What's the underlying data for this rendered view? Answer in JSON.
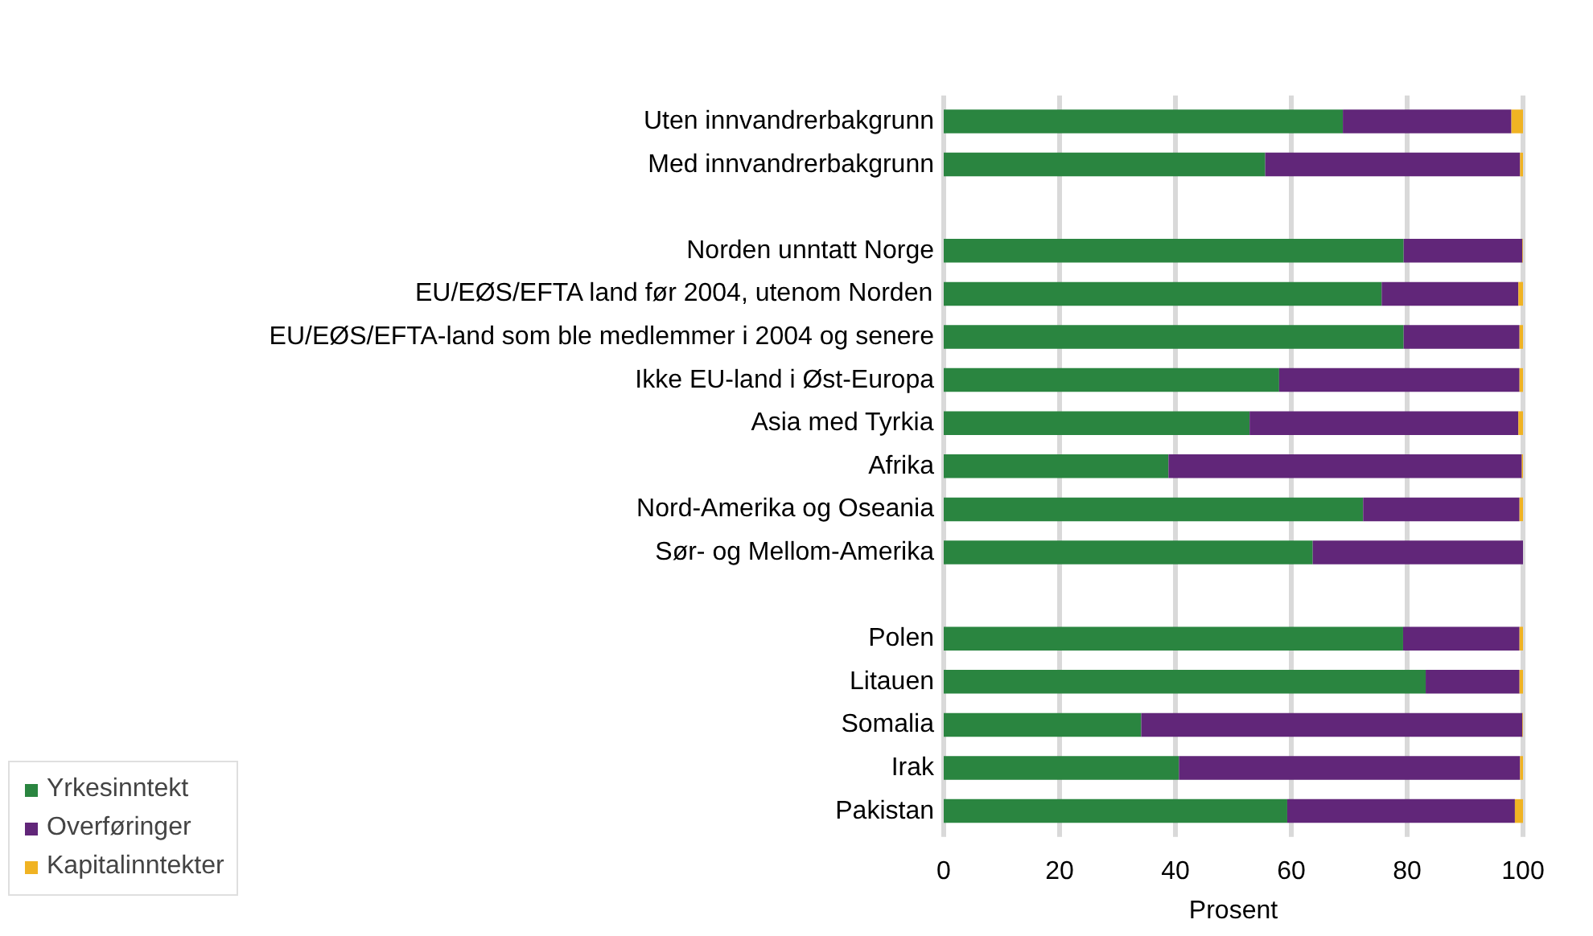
{
  "chart_data": {
    "type": "bar",
    "orientation": "horizontal",
    "stacked": true,
    "categories": [
      "Uten innvandrerbakgrunn",
      "Med innvandrerbakgrunn",
      null,
      "Norden unntatt Norge",
      "EU/EØS/EFTA land før 2004, utenom Norden",
      "EU/EØS/EFTA-land som ble medlemmer i 2004 og senere",
      "Ikke EU-land i Øst-Europa",
      "Asia med Tyrkia",
      "Afrika",
      "Nord-Amerika og Oseania",
      "Sør- og Mellom-Amerika",
      null,
      "Polen",
      "Litauen",
      "Somalia",
      "Irak",
      "Pakistan"
    ],
    "series": [
      {
        "name": "Yrkesinntekt",
        "color": "#2a8540",
        "values": [
          68.9,
          55.5,
          null,
          79.4,
          75.6,
          79.4,
          57.9,
          52.8,
          38.8,
          72.4,
          63.7,
          null,
          79.3,
          83.2,
          34.1,
          40.6,
          59.3
        ]
      },
      {
        "name": "Overføringer",
        "color": "#612679",
        "values": [
          29.1,
          44.0,
          null,
          20.5,
          23.6,
          20.0,
          41.5,
          46.4,
          61.0,
          27.0,
          36.3,
          null,
          20.1,
          16.2,
          65.8,
          58.9,
          39.3
        ]
      },
      {
        "name": "Kapitalinntekter",
        "color": "#f0b323",
        "values": [
          2.0,
          0.5,
          null,
          0.1,
          0.8,
          0.6,
          0.6,
          0.8,
          0.2,
          0.6,
          0.0,
          null,
          0.6,
          0.6,
          0.1,
          0.5,
          1.4
        ]
      }
    ],
    "xlim": [
      0,
      100
    ],
    "xticks": [
      0,
      20,
      40,
      60,
      80,
      100
    ],
    "xlabel": "Prosent",
    "grid": "x",
    "legend": "bottom left"
  }
}
